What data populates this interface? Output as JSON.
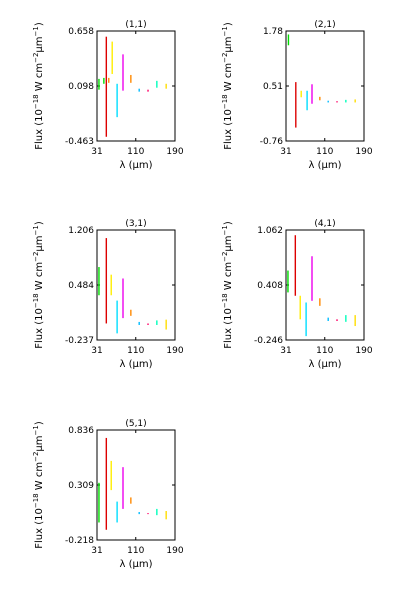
{
  "chart_data": [
    {
      "type": "scatter",
      "title": "(1,1)",
      "xlabel": "λ (μm)",
      "ylabel": "Flux (10^-18 W cm^-2 μm^-1)",
      "xlim": [
        31,
        190
      ],
      "ylim": [
        -0.463,
        0.658
      ],
      "xticks": [
        "31",
        "110",
        "190"
      ],
      "yticks": [
        "-0.463",
        "0.098",
        "0.658"
      ],
      "segments": [
        {
          "x": 35,
          "y0": 0.06,
          "y1": 0.17,
          "color": "#00dd00"
        },
        {
          "x": 45,
          "y0": 0.12,
          "y1": 0.18,
          "color": "#00dd00"
        },
        {
          "x": 50,
          "y0": -0.42,
          "y1": 0.6,
          "color": "#dd0000"
        },
        {
          "x": 55,
          "y0": 0.13,
          "y1": 0.18,
          "color": "#ff8800"
        },
        {
          "x": 62,
          "y0": 0.22,
          "y1": 0.55,
          "color": "#ffee00"
        },
        {
          "x": 72,
          "y0": -0.22,
          "y1": 0.12,
          "color": "#00ddff"
        },
        {
          "x": 84,
          "y0": 0.05,
          "y1": 0.42,
          "color": "#ee00ee"
        },
        {
          "x": 100,
          "y0": 0.13,
          "y1": 0.21,
          "color": "#ff8800"
        },
        {
          "x": 117,
          "y0": 0.04,
          "y1": 0.07,
          "color": "#00bbff"
        },
        {
          "x": 135,
          "y0": 0.04,
          "y1": 0.06,
          "color": "#ff0066"
        },
        {
          "x": 153,
          "y0": 0.08,
          "y1": 0.15,
          "color": "#00ffbb"
        },
        {
          "x": 172,
          "y0": 0.07,
          "y1": 0.12,
          "color": "#ffdd00"
        }
      ]
    },
    {
      "type": "scatter",
      "title": "(2,1)",
      "xlabel": "λ (μm)",
      "ylabel": "Flux (10^-18 W cm^-2 μm^-1)",
      "xlim": [
        31,
        190
      ],
      "ylim": [
        -0.76,
        1.78
      ],
      "xticks": [
        "31",
        "110",
        "190"
      ],
      "yticks": [
        "-0.76",
        "0.51",
        "1.78"
      ],
      "segments": [
        {
          "x": 36,
          "y0": 1.45,
          "y1": 1.7,
          "color": "#00dd00"
        },
        {
          "x": 51,
          "y0": -0.45,
          "y1": 0.6,
          "color": "#dd0000"
        },
        {
          "x": 62,
          "y0": 0.25,
          "y1": 0.4,
          "color": "#ffee00"
        },
        {
          "x": 74,
          "y0": -0.05,
          "y1": 0.4,
          "color": "#00ddff"
        },
        {
          "x": 84,
          "y0": 0.1,
          "y1": 0.55,
          "color": "#ee00ee"
        },
        {
          "x": 100,
          "y0": 0.18,
          "y1": 0.26,
          "color": "#ff8800"
        },
        {
          "x": 117,
          "y0": 0.13,
          "y1": 0.17,
          "color": "#00bbff"
        },
        {
          "x": 135,
          "y0": 0.13,
          "y1": 0.16,
          "color": "#ff0066"
        },
        {
          "x": 153,
          "y0": 0.13,
          "y1": 0.19,
          "color": "#00ffbb"
        },
        {
          "x": 172,
          "y0": 0.13,
          "y1": 0.2,
          "color": "#ffdd00"
        }
      ]
    },
    {
      "type": "scatter",
      "title": "(3,1)",
      "xlabel": "λ (μm)",
      "ylabel": "Flux (10^-18 W cm^-2 μm^-1)",
      "xlim": [
        31,
        190
      ],
      "ylim": [
        -0.237,
        1.206
      ],
      "xticks": [
        "31",
        "110",
        "190"
      ],
      "yticks": [
        "-0.237",
        "0.484",
        "1.206"
      ],
      "segments": [
        {
          "x": 35,
          "y0": 0.35,
          "y1": 0.72,
          "color": "#00dd00"
        },
        {
          "x": 50,
          "y0": -0.02,
          "y1": 1.1,
          "color": "#dd0000"
        },
        {
          "x": 60,
          "y0": 0.35,
          "y1": 0.62,
          "color": "#ffee00"
        },
        {
          "x": 72,
          "y0": -0.15,
          "y1": 0.28,
          "color": "#00ddff"
        },
        {
          "x": 84,
          "y0": 0.05,
          "y1": 0.57,
          "color": "#ee00ee"
        },
        {
          "x": 100,
          "y0": 0.08,
          "y1": 0.16,
          "color": "#ff8800"
        },
        {
          "x": 117,
          "y0": -0.04,
          "y1": 0.0,
          "color": "#00bbff"
        },
        {
          "x": 135,
          "y0": -0.04,
          "y1": -0.02,
          "color": "#ff0066"
        },
        {
          "x": 153,
          "y0": -0.04,
          "y1": 0.02,
          "color": "#00ffbb"
        },
        {
          "x": 172,
          "y0": -0.1,
          "y1": 0.03,
          "color": "#ffdd00"
        }
      ]
    },
    {
      "type": "scatter",
      "title": "(4,1)",
      "xlabel": "λ (μm)",
      "ylabel": "Flux (10^-18 W cm^-2 μm^-1)",
      "xlim": [
        31,
        190
      ],
      "ylim": [
        -0.246,
        1.062
      ],
      "xticks": [
        "31",
        "110",
        "190"
      ],
      "yticks": [
        "-0.246",
        "0.408",
        "1.062"
      ],
      "segments": [
        {
          "x": 35,
          "y0": 0.32,
          "y1": 0.58,
          "color": "#00dd00"
        },
        {
          "x": 50,
          "y0": 0.28,
          "y1": 1.0,
          "color": "#dd0000"
        },
        {
          "x": 60,
          "y0": 0.0,
          "y1": 0.28,
          "color": "#ffee00"
        },
        {
          "x": 72,
          "y0": -0.2,
          "y1": 0.2,
          "color": "#00ddff"
        },
        {
          "x": 84,
          "y0": 0.22,
          "y1": 0.75,
          "color": "#ee00ee"
        },
        {
          "x": 100,
          "y0": 0.16,
          "y1": 0.25,
          "color": "#ff8800"
        },
        {
          "x": 117,
          "y0": -0.02,
          "y1": 0.02,
          "color": "#00bbff"
        },
        {
          "x": 135,
          "y0": -0.02,
          "y1": 0.0,
          "color": "#ff0066"
        },
        {
          "x": 153,
          "y0": -0.03,
          "y1": 0.05,
          "color": "#00ffbb"
        },
        {
          "x": 172,
          "y0": -0.08,
          "y1": 0.05,
          "color": "#ffdd00"
        }
      ]
    },
    {
      "type": "scatter",
      "title": "(5,1)",
      "xlabel": "λ (μm)",
      "ylabel": "Flux (10^-18 W cm^-2 μm^-1)",
      "xlim": [
        31,
        190
      ],
      "ylim": [
        -0.218,
        0.836
      ],
      "xticks": [
        "31",
        "110",
        "190"
      ],
      "yticks": [
        "-0.218",
        "0.309",
        "0.836"
      ],
      "segments": [
        {
          "x": 35,
          "y0": -0.05,
          "y1": 0.33,
          "color": "#00dd00"
        },
        {
          "x": 50,
          "y0": -0.12,
          "y1": 0.76,
          "color": "#dd0000"
        },
        {
          "x": 60,
          "y0": 0.26,
          "y1": 0.54,
          "color": "#ffee00"
        },
        {
          "x": 72,
          "y0": -0.05,
          "y1": 0.15,
          "color": "#00ddff"
        },
        {
          "x": 84,
          "y0": 0.08,
          "y1": 0.48,
          "color": "#ee00ee"
        },
        {
          "x": 100,
          "y0": 0.13,
          "y1": 0.19,
          "color": "#ff8800"
        },
        {
          "x": 117,
          "y0": 0.03,
          "y1": 0.05,
          "color": "#00bbff"
        },
        {
          "x": 135,
          "y0": 0.03,
          "y1": 0.04,
          "color": "#ff0066"
        },
        {
          "x": 153,
          "y0": 0.02,
          "y1": 0.08,
          "color": "#00ffbb"
        },
        {
          "x": 172,
          "y0": -0.02,
          "y1": 0.06,
          "color": "#ffdd00"
        }
      ]
    }
  ]
}
